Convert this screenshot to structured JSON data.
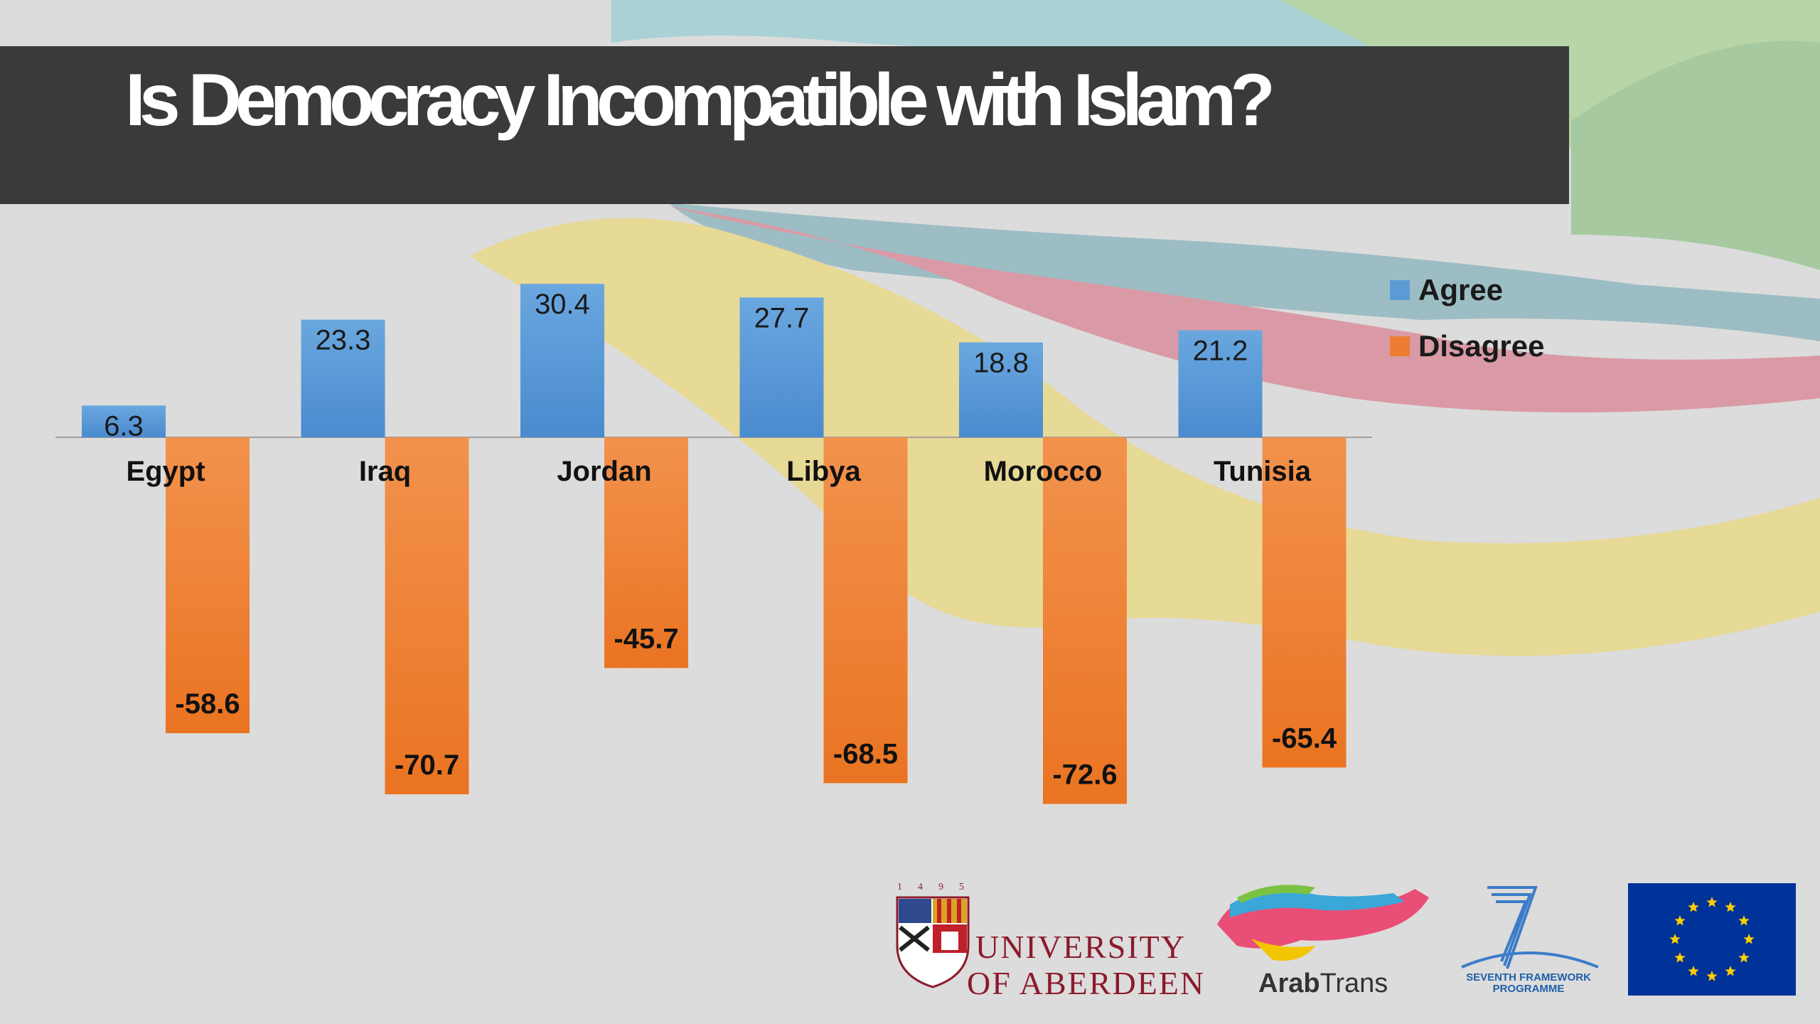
{
  "slide": {
    "title": "Is Democracy Incompatible with Islam?"
  },
  "chart_data": {
    "type": "bar",
    "title": "Is Democracy Incompatible with Islam?",
    "categories": [
      "Egypt",
      "Iraq",
      "Jordan",
      "Libya",
      "Morocco",
      "Tunisia"
    ],
    "series": [
      {
        "name": "Agree",
        "color": "#5b9bd5",
        "values": [
          6.3,
          23.3,
          30.4,
          27.7,
          18.8,
          21.2
        ]
      },
      {
        "name": "Disagree",
        "color": "#ed7d31",
        "values": [
          -58.6,
          -70.7,
          -45.7,
          -68.5,
          -72.6,
          -65.4
        ]
      }
    ],
    "ylim": [
      -75,
      35
    ],
    "grid": false,
    "legend_position": "top-right"
  },
  "logos": {
    "aberdeen_year": "1495",
    "aberdeen_line1": "UNIVERSITY",
    "aberdeen_line2": "OF ABERDEEN",
    "arabtrans_bold": "Arab",
    "arabtrans_light": "Trans",
    "fp7_line1": "SEVENTH FRAMEWORK",
    "fp7_line2": "PROGRAMME"
  }
}
